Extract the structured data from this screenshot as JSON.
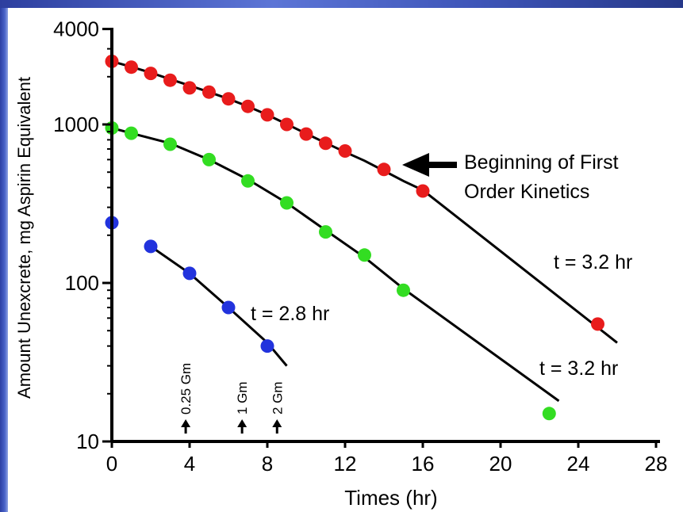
{
  "chart_data": {
    "type": "scatter",
    "title": "",
    "xlabel": "Times (hr)",
    "ylabel": "Amount Unexcrete, mg Aspirin Equivalent",
    "xlim": [
      0,
      28
    ],
    "ylim": [
      10,
      4000
    ],
    "y_scale": "log",
    "grid": false,
    "x_ticks": [
      "0",
      "4",
      "8",
      "12",
      "16",
      "20",
      "24",
      "28"
    ],
    "y_ticks": [
      "10",
      "100",
      "1000",
      "4000"
    ],
    "series": [
      {
        "color": "#e81c1c",
        "x": [
          0,
          1,
          2,
          3,
          4,
          5,
          6,
          7,
          8,
          9,
          10,
          11,
          12,
          14,
          16,
          25
        ],
        "y": [
          2500,
          2300,
          2100,
          1900,
          1700,
          1600,
          1450,
          1300,
          1150,
          1000,
          870,
          760,
          680,
          520,
          380,
          55
        ],
        "fit_x": [
          0,
          1,
          2,
          3,
          4,
          5,
          6,
          7,
          8,
          9,
          10,
          11,
          12,
          13,
          14,
          15,
          16,
          26
        ],
        "fit_y": [
          2500,
          2310,
          2120,
          1930,
          1760,
          1600,
          1450,
          1300,
          1150,
          1005,
          875,
          765,
          670,
          590,
          510,
          440,
          385,
          42
        ]
      },
      {
        "color": "#33dd22",
        "x": [
          0,
          1,
          3,
          5,
          7,
          9,
          11,
          13,
          15,
          22.5
        ],
        "y": [
          950,
          880,
          750,
          600,
          440,
          320,
          210,
          150,
          90,
          15
        ],
        "fit_x": [
          0,
          1,
          3,
          5,
          7,
          9,
          11,
          13,
          15,
          23
        ],
        "fit_y": [
          950,
          880,
          760,
          600,
          450,
          320,
          215,
          145,
          92,
          18
        ]
      },
      {
        "color": "#2233dd",
        "x": [
          0,
          2,
          4,
          6,
          8
        ],
        "y": [
          240,
          170,
          115,
          70,
          40
        ],
        "fit_x": [
          2,
          4,
          6,
          8,
          9
        ],
        "fit_y": [
          170,
          115,
          70,
          42,
          30
        ]
      }
    ],
    "annotations": {
      "beginning": "Beginning of First\nOrder Kinetics",
      "red_half_life": "t = 3.2 hr",
      "green_half_life": "t = 3.2 hr",
      "blue_half_life": "t = 2.8 hr",
      "doses": [
        {
          "label": "0.25 Gm",
          "x": 3.8
        },
        {
          "label": "1 Gm",
          "x": 6.7
        },
        {
          "label": "2 Gm",
          "x": 8.5
        }
      ]
    }
  }
}
